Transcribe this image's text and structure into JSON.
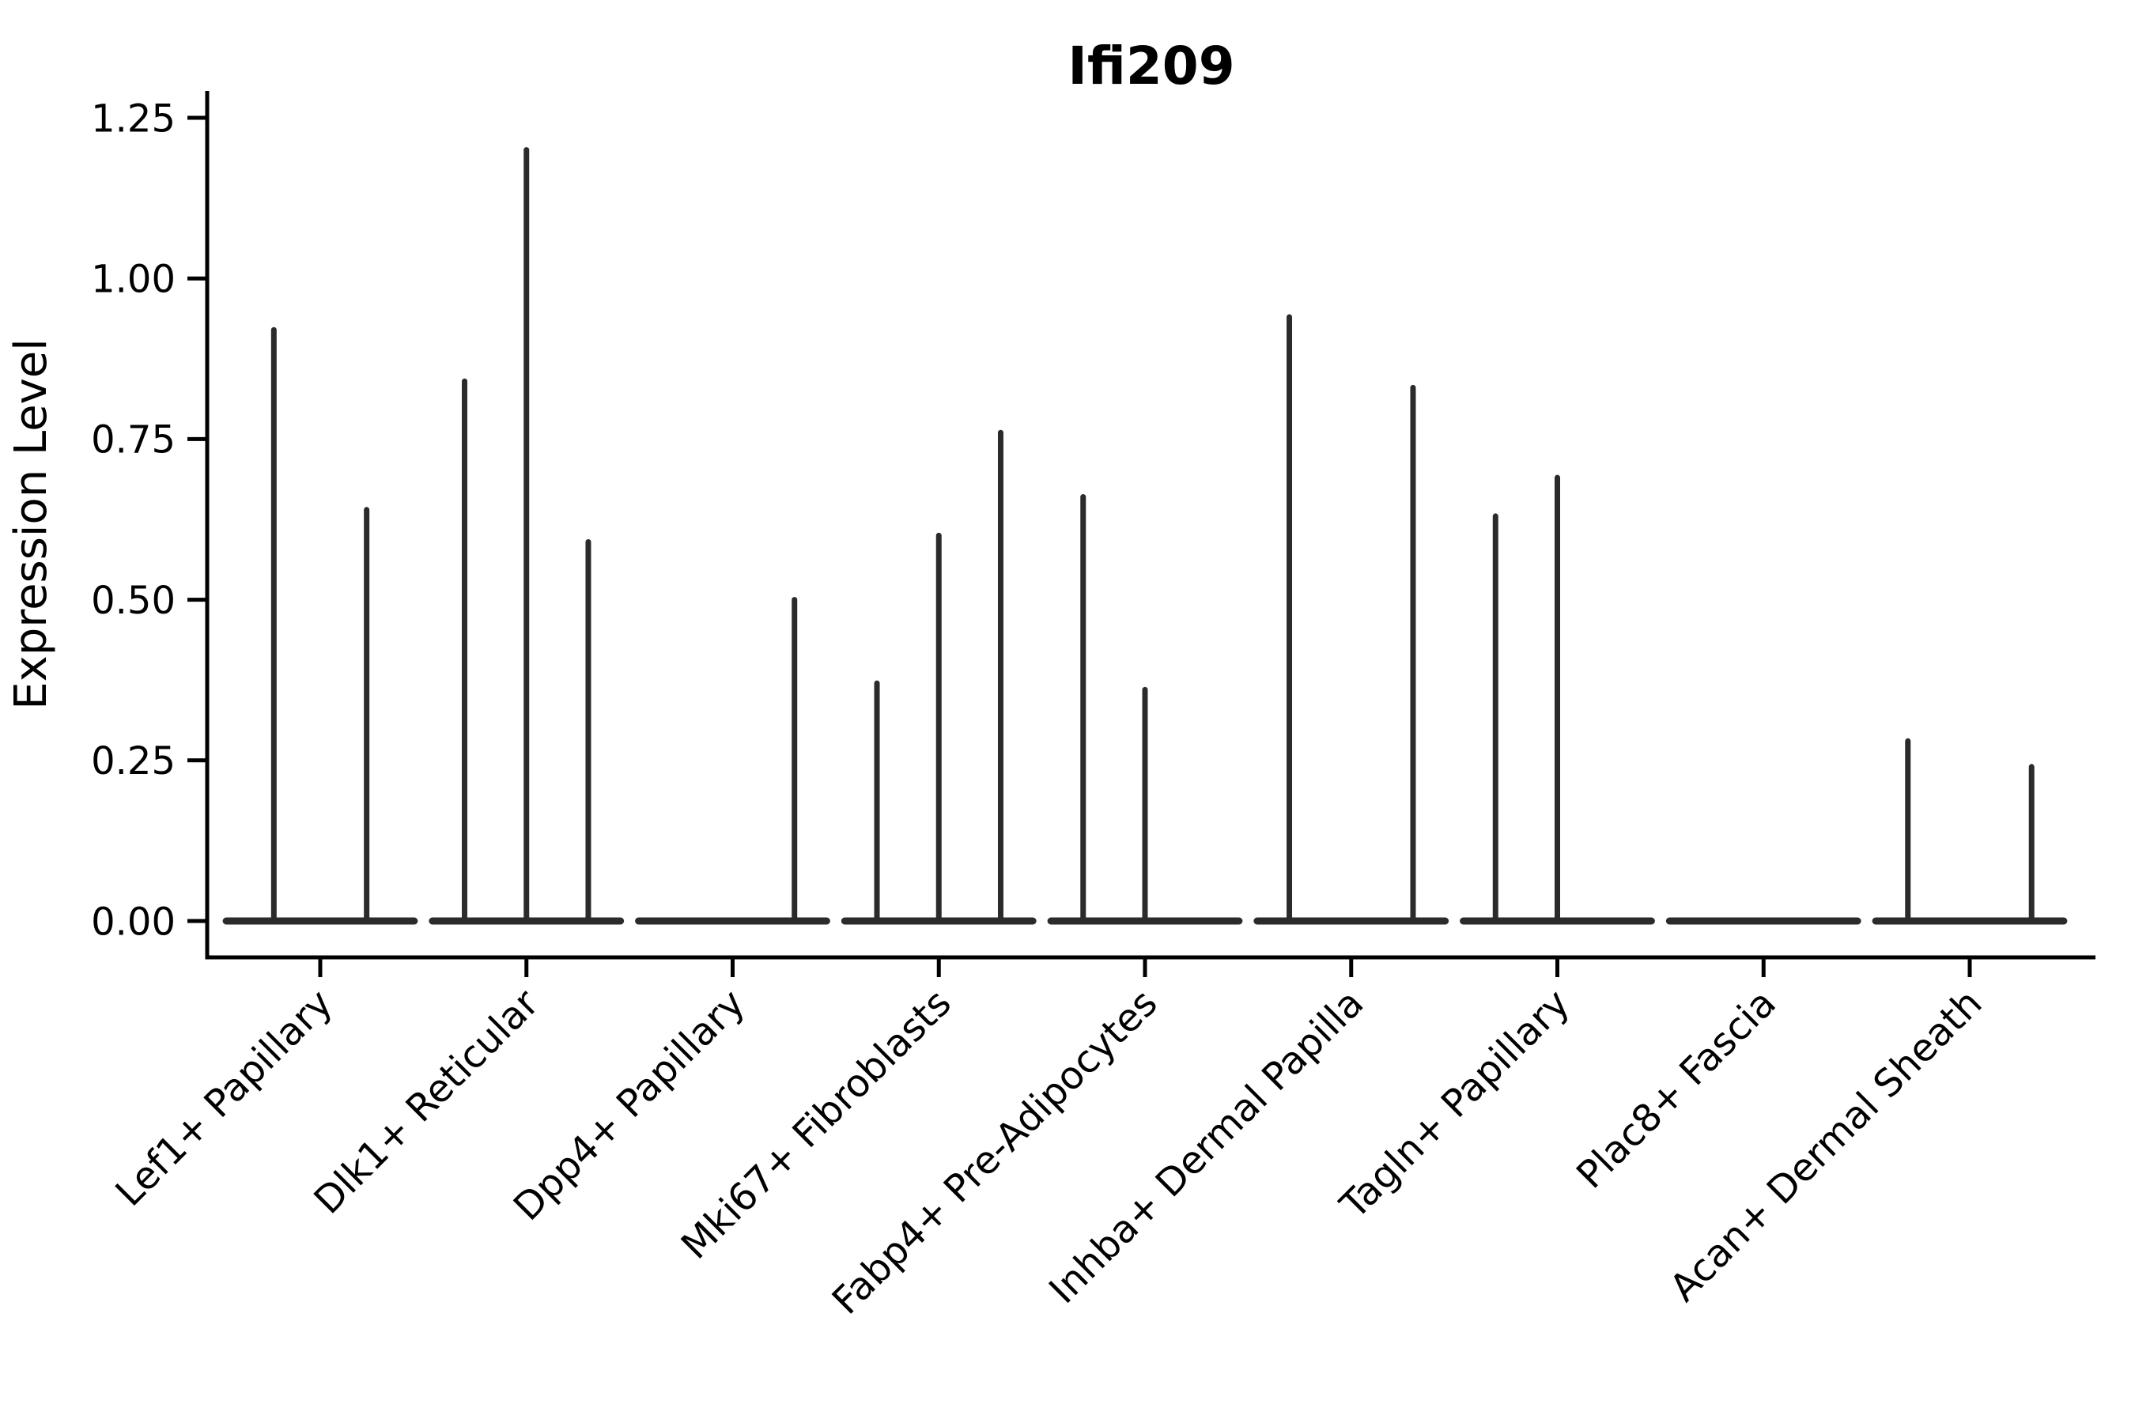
{
  "figure": {
    "title": "Ifi209",
    "y_axis_label": "Expression Level"
  },
  "chart_data": {
    "type": "violin",
    "title": "Ifi209",
    "xlabel": "",
    "ylabel": "Expression Level",
    "ylim": [
      -0.057,
      1.292
    ],
    "grid": false,
    "legend_position": "none",
    "yticks": [
      0.0,
      0.25,
      0.5,
      0.75,
      1.0,
      1.25
    ],
    "ytick_labels": [
      "0.00",
      "0.25",
      "0.50",
      "0.75",
      "1.00",
      "1.25"
    ],
    "categories": [
      "Lef1+ Papillary",
      "Dlk1+ Reticular",
      "Dpp4+ Papillary",
      "Mki67+ Fibroblasts",
      "Fabp4+ Pre-Adipocytes",
      "Inhba+ Dermal Papilla",
      "Tagln+ Papillary",
      "Plac8+ Fascia",
      "Acan+ Dermal Sheath"
    ],
    "violin_half_width_frac": 0.456,
    "violins": [
      {
        "category": "Lef1+ Papillary",
        "spikes": [
          {
            "offset": -0.225,
            "value": 0.92
          },
          {
            "offset": 0.225,
            "value": 0.64
          }
        ]
      },
      {
        "category": "Dlk1+ Reticular",
        "spikes": [
          {
            "offset": -0.3,
            "value": 0.84
          },
          {
            "offset": 0.0,
            "value": 1.2
          },
          {
            "offset": 0.3,
            "value": 0.59
          }
        ]
      },
      {
        "category": "Dpp4+ Papillary",
        "spikes": [
          {
            "offset": 0.3,
            "value": 0.5
          }
        ]
      },
      {
        "category": "Mki67+ Fibroblasts",
        "spikes": [
          {
            "offset": -0.3,
            "value": 0.37
          },
          {
            "offset": 0.0,
            "value": 0.6
          },
          {
            "offset": 0.3,
            "value": 0.76
          }
        ]
      },
      {
        "category": "Fabp4+ Pre-Adipocytes",
        "spikes": [
          {
            "offset": -0.3,
            "value": 0.66
          },
          {
            "offset": 0.0,
            "value": 0.36
          }
        ]
      },
      {
        "category": "Inhba+ Dermal Papilla",
        "spikes": [
          {
            "offset": -0.3,
            "value": 0.94
          },
          {
            "offset": 0.3,
            "value": 0.83
          }
        ]
      },
      {
        "category": "Tagln+ Papillary",
        "spikes": [
          {
            "offset": -0.3,
            "value": 0.63
          },
          {
            "offset": 0.0,
            "value": 0.69
          }
        ]
      },
      {
        "category": "Plac8+ Fascia",
        "spikes": []
      },
      {
        "category": "Acan+ Dermal Sheath",
        "spikes": [
          {
            "offset": -0.3,
            "value": 0.28
          },
          {
            "offset": 0.3,
            "value": 0.24
          }
        ]
      }
    ],
    "colors": {
      "violin_stroke": "#2b2b2b",
      "axis": "#000000",
      "text": "#000000",
      "background": "#ffffff"
    }
  }
}
